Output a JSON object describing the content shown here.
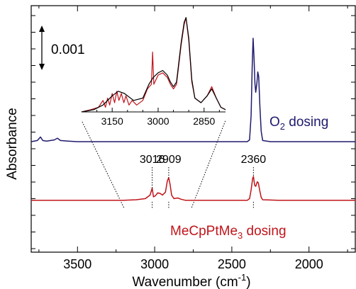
{
  "chart_data": {
    "type": "line",
    "xlabel_main": "Wavenumber (cm",
    "xlabel_sup": "-1",
    "xlabel_close": ")",
    "ylabel": "Absorbance",
    "x_reversed": true,
    "xlim": [
      3800,
      1700
    ],
    "x_ticks": [
      3500,
      3000,
      2500,
      2000
    ],
    "scale_bar_label": "0.001",
    "series": [
      {
        "name": "O2 dosing",
        "label_main": "O",
        "label_sub": "2",
        "label_rest": " dosing",
        "color": "#1f1a6e",
        "baseline": 0.0,
        "points": [
          [
            3800,
            0.0
          ],
          [
            3760,
            0.0002
          ],
          [
            3740,
            0.0008
          ],
          [
            3725,
            0.0002
          ],
          [
            3700,
            0.0001
          ],
          [
            3650,
            0.0003
          ],
          [
            3630,
            0.0006
          ],
          [
            3610,
            0.0002
          ],
          [
            3560,
            0.0001
          ],
          [
            3500,
            0.0
          ],
          [
            3300,
            0.0
          ],
          [
            3000,
            0.0
          ],
          [
            2700,
            0.0
          ],
          [
            2450,
            0.0
          ],
          [
            2400,
            0.0
          ],
          [
            2385,
            0.0003
          ],
          [
            2375,
            0.0045
          ],
          [
            2368,
            0.0128
          ],
          [
            2362,
            0.0178
          ],
          [
            2356,
            0.0145
          ],
          [
            2350,
            0.01
          ],
          [
            2345,
            0.0085
          ],
          [
            2338,
            0.01
          ],
          [
            2332,
            0.012
          ],
          [
            2326,
            0.0112
          ],
          [
            2318,
            0.006
          ],
          [
            2310,
            0.0018
          ],
          [
            2300,
            0.0002
          ],
          [
            2250,
            0.0
          ],
          [
            2000,
            0.0
          ],
          [
            1700,
            0.0
          ]
        ]
      },
      {
        "name": "MeCpPtMe3 dosing",
        "label_main": "MeCpPtMe",
        "label_sub": "3",
        "label_rest": " dosing",
        "color": "#c0141a",
        "baseline": -0.0101,
        "points": [
          [
            3800,
            0.0
          ],
          [
            3600,
            0.0
          ],
          [
            3400,
            0.0
          ],
          [
            3200,
            0.0
          ],
          [
            3120,
            0.0001
          ],
          [
            3060,
            0.0003
          ],
          [
            3040,
            0.0007
          ],
          [
            3030,
            0.0009
          ],
          [
            3016,
            0.0021
          ],
          [
            3008,
            0.0006
          ],
          [
            2995,
            0.0008
          ],
          [
            2980,
            0.0013
          ],
          [
            2965,
            0.0012
          ],
          [
            2950,
            0.0009
          ],
          [
            2930,
            0.0014
          ],
          [
            2918,
            0.0033
          ],
          [
            2909,
            0.0039
          ],
          [
            2900,
            0.0027
          ],
          [
            2890,
            0.0009
          ],
          [
            2875,
            0.0003
          ],
          [
            2850,
            0.0004
          ],
          [
            2830,
            0.0002
          ],
          [
            2800,
            0.0
          ],
          [
            2500,
            0.0
          ],
          [
            2400,
            0.0
          ],
          [
            2385,
            0.0003
          ],
          [
            2375,
            0.0018
          ],
          [
            2365,
            0.0038
          ],
          [
            2360,
            0.0041
          ],
          [
            2352,
            0.0026
          ],
          [
            2345,
            0.0024
          ],
          [
            2335,
            0.0032
          ],
          [
            2328,
            0.003
          ],
          [
            2320,
            0.0018
          ],
          [
            2310,
            0.0005
          ],
          [
            2300,
            0.0001
          ],
          [
            2200,
            0.0
          ],
          [
            1900,
            0.0
          ],
          [
            1700,
            0.0
          ]
        ]
      }
    ],
    "annotations": [
      {
        "label": "3016",
        "x": 3016
      },
      {
        "label": "2909",
        "x": 2909
      },
      {
        "label": "2360",
        "x": 2360
      }
    ],
    "inset": {
      "xlim": [
        3250,
        2780
      ],
      "x_ticks": [
        3150,
        3000,
        2850
      ],
      "zoom_from_xlim": [
        3200,
        2760
      ],
      "series": [
        {
          "name": "black trace",
          "color": "#000000",
          "points": [
            [
              3250,
              0.0
            ],
            [
              3210,
              0.0001
            ],
            [
              3180,
              0.0003
            ],
            [
              3150,
              0.0007
            ],
            [
              3130,
              0.0009
            ],
            [
              3110,
              0.0008
            ],
            [
              3080,
              0.0005
            ],
            [
              3050,
              0.0006
            ],
            [
              3030,
              0.0012
            ],
            [
              3016,
              0.0015
            ],
            [
              3000,
              0.0017
            ],
            [
              2985,
              0.0018
            ],
            [
              2970,
              0.0016
            ],
            [
              2960,
              0.0013
            ],
            [
              2950,
              0.0011
            ],
            [
              2940,
              0.0013
            ],
            [
              2925,
              0.003
            ],
            [
              2915,
              0.0039
            ],
            [
              2909,
              0.0041
            ],
            [
              2900,
              0.0032
            ],
            [
              2890,
              0.0014
            ],
            [
              2880,
              0.0006
            ],
            [
              2860,
              0.0004
            ],
            [
              2840,
              0.0007
            ],
            [
              2825,
              0.001
            ],
            [
              2810,
              0.0006
            ],
            [
              2795,
              0.0002
            ],
            [
              2780,
              0.0001
            ]
          ]
        },
        {
          "name": "red trace",
          "color": "#c0141a",
          "points": [
            [
              3250,
              0.0
            ],
            [
              3220,
              0.0001
            ],
            [
              3195,
              0.0002
            ],
            [
              3180,
              0.0005
            ],
            [
              3172,
              0.0002
            ],
            [
              3165,
              0.0006
            ],
            [
              3158,
              0.0003
            ],
            [
              3150,
              0.0008
            ],
            [
              3142,
              0.0004
            ],
            [
              3135,
              0.0009
            ],
            [
              3128,
              0.0005
            ],
            [
              3120,
              0.0008
            ],
            [
              3112,
              0.0004
            ],
            [
              3105,
              0.0007
            ],
            [
              3095,
              0.0003
            ],
            [
              3085,
              0.0005
            ],
            [
              3070,
              0.0003
            ],
            [
              3050,
              0.0005
            ],
            [
              3035,
              0.001
            ],
            [
              3022,
              0.0012
            ],
            [
              3018,
              0.0026
            ],
            [
              3014,
              0.0012
            ],
            [
              3000,
              0.0016
            ],
            [
              2985,
              0.0017
            ],
            [
              2970,
              0.0015
            ],
            [
              2960,
              0.0012
            ],
            [
              2950,
              0.001
            ],
            [
              2940,
              0.0012
            ],
            [
              2925,
              0.0029
            ],
            [
              2915,
              0.0038
            ],
            [
              2909,
              0.0041
            ],
            [
              2900,
              0.0031
            ],
            [
              2890,
              0.0013
            ],
            [
              2880,
              0.0006
            ],
            [
              2860,
              0.0004
            ],
            [
              2840,
              0.0007
            ],
            [
              2825,
              0.0011
            ],
            [
              2810,
              0.0006
            ],
            [
              2795,
              0.0002
            ],
            [
              2780,
              0.0001
            ]
          ]
        }
      ]
    }
  }
}
